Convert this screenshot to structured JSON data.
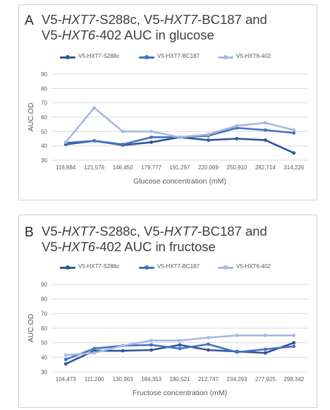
{
  "panels": [
    {
      "letter": "A",
      "title": {
        "p1": "V5-",
        "i1": "HXT7",
        "p2": "-S288c, V5-",
        "i2": "HXT7",
        "p3": "-BC187 and",
        "p4": "V5-",
        "i3": "HXT6",
        "p5": "-402 AUC in glucose"
      }
    },
    {
      "letter": "B",
      "title": {
        "p1": "V5-",
        "i1": "HXT7",
        "p2": "-S288c, V5-",
        "i2": "HXT7",
        "p3": "-BC187 and",
        "p4": "V5-",
        "i3": "HXT6",
        "p5": "-402 AUC in fructose"
      }
    }
  ],
  "colors": {
    "s288c": "#2f5597",
    "bc187": "#4472c4",
    "hxt6": "#a7b9e0"
  },
  "chart_data": [
    {
      "type": "line",
      "title": "V5-HXT7-S288c, V5-HXT7-BC187 and V5-HXT6-402 AUC in glucose",
      "xlabel": "Glucose concentration (mM)",
      "ylabel": "AUC.OD",
      "ylim": [
        30,
        90
      ],
      "yticks": [
        30,
        40,
        50,
        60,
        70,
        80,
        90
      ],
      "categories": [
        "116,884",
        "121,576",
        "146,450",
        "179,777",
        "191,297",
        "220,069",
        "250,910",
        "282,714",
        "314,226"
      ],
      "grid": true,
      "legend_position": "top",
      "series": [
        {
          "name": "V5-HXT7-S288c",
          "color": "#2f5597",
          "values": [
            41,
            43.5,
            40.5,
            42.5,
            46,
            44,
            45,
            44,
            35
          ]
        },
        {
          "name": "V5-HXT7-BC187",
          "color": "#4472c4",
          "values": [
            42,
            43.5,
            41,
            46,
            46,
            47,
            52.5,
            51,
            49
          ]
        },
        {
          "name": "V5-HXT6-402",
          "color": "#a7b9e0",
          "values": [
            42.5,
            66.5,
            50,
            50,
            46,
            48,
            54,
            56,
            51
          ]
        }
      ]
    },
    {
      "type": "line",
      "title": "V5-HXT7-S288c, V5-HXT7-BC187 and V5-HXT6-402 AUC in fructose",
      "xlabel": "Fructose concentration (mM)",
      "ylabel": "AUC.OD",
      "ylim": [
        30,
        90
      ],
      "yticks": [
        30,
        40,
        50,
        60,
        70,
        80,
        90
      ],
      "categories": [
        "104,473",
        "111,200",
        "130,963",
        "184,353",
        "180,521",
        "212,747",
        "234,293",
        "277,925",
        "298,342"
      ],
      "grid": true,
      "legend_position": "top",
      "series": [
        {
          "name": "V5-HXT7-S288c",
          "color": "#2f5597",
          "values": [
            35.5,
            44.5,
            44.5,
            45,
            48.5,
            45,
            44,
            43,
            50
          ]
        },
        {
          "name": "V5-HXT7-BC187",
          "color": "#4472c4",
          "values": [
            38.5,
            46,
            48,
            48.5,
            46,
            49,
            43.5,
            45.5,
            47.5
          ]
        },
        {
          "name": "V5-HXT6-402",
          "color": "#a7b9e0",
          "values": [
            41.5,
            43,
            48,
            51.5,
            51.5,
            53.5,
            55,
            55,
            55
          ]
        }
      ]
    }
  ]
}
